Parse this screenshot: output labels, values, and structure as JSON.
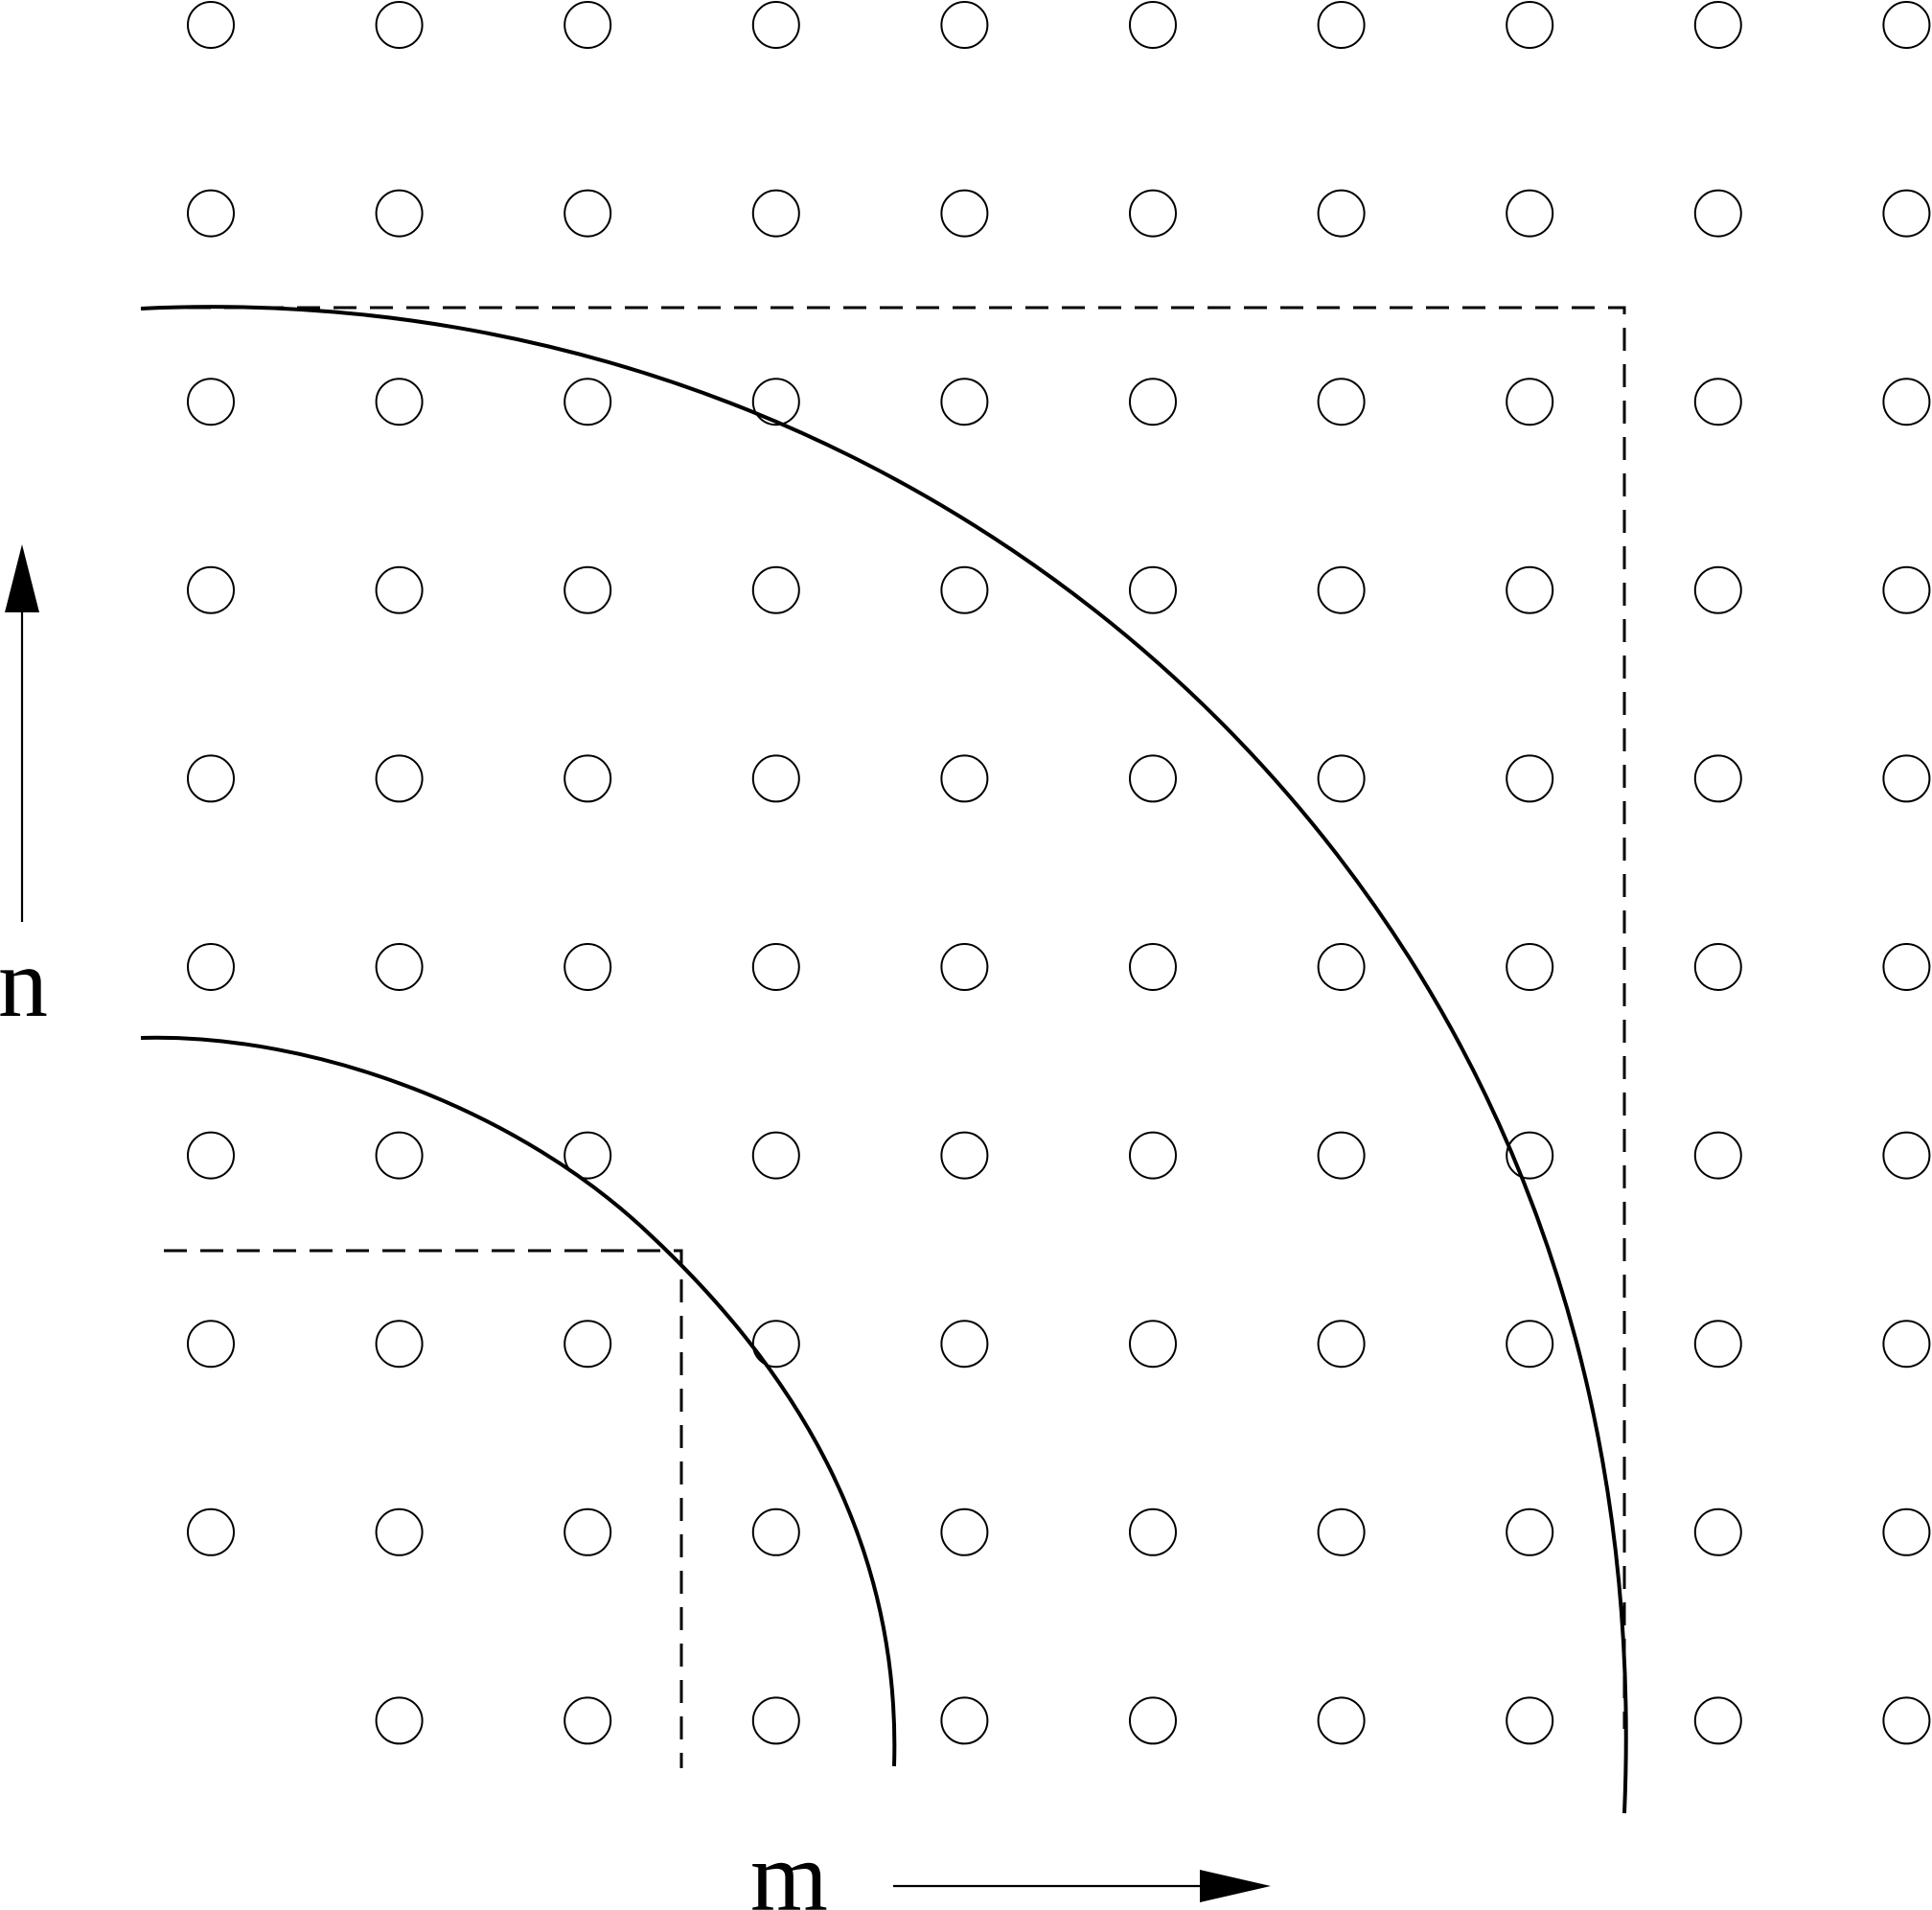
{
  "axes": {
    "horizontal_label": "m",
    "vertical_label": "n"
  },
  "lattice": {
    "columns": 10,
    "rows": 10,
    "missing_points": [
      [
        0,
        9
      ]
    ]
  },
  "colors": {
    "ink": "#000000",
    "background": "#ffffff"
  }
}
